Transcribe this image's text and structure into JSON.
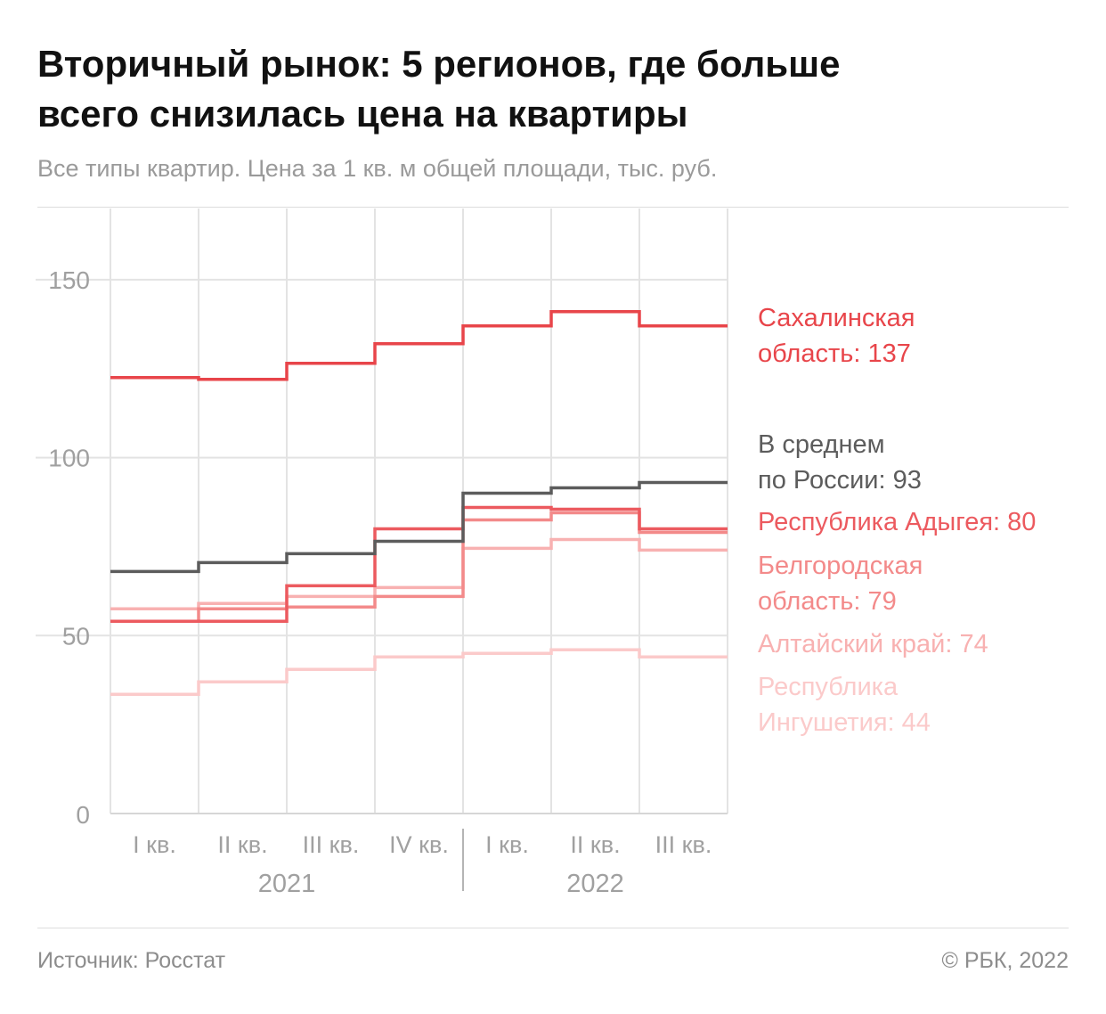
{
  "header": {
    "title_lines": [
      "Вторичный рынок: 5 регионов, где больше",
      "всего снизилась цена на квартиры"
    ],
    "subtitle": "Все типы квартир. Цена за 1 кв. м общей площади, тыс. руб."
  },
  "footer": {
    "source": "Источник: Росстат",
    "copyright": "© РБК, 2022"
  },
  "chart_data": {
    "type": "line",
    "step": true,
    "categories": [
      "I кв.",
      "II кв.",
      "III кв.",
      "IV кв.",
      "I кв.",
      "II кв.",
      "III кв."
    ],
    "years": [
      {
        "label": "2021",
        "quarters": 4
      },
      {
        "label": "2022",
        "quarters": 3
      }
    ],
    "ylim": [
      0,
      170
    ],
    "yticks": [
      0,
      50,
      100,
      150
    ],
    "grid": true,
    "series": [
      {
        "name": "Сахалинская область",
        "label_lines": [
          "Сахалинская",
          "область: 137"
        ],
        "color": "#e8454a",
        "values": [
          122.5,
          122,
          126.5,
          132,
          137,
          141,
          137
        ]
      },
      {
        "name": "В среднем по России",
        "label_lines": [
          "В среднем",
          "по России: 93"
        ],
        "color": "#5c5c5c",
        "values": [
          68,
          70.5,
          73,
          76.5,
          90,
          91.5,
          93
        ]
      },
      {
        "name": "Республика Адыгея",
        "label_lines": [
          "Республика Адыгея: 80"
        ],
        "color": "#ec5a5f",
        "values": [
          54,
          54,
          64,
          80,
          86,
          85.5,
          80
        ]
      },
      {
        "name": "Белгородская область",
        "label_lines": [
          "Белгородская",
          "область: 79"
        ],
        "color": "#f38a8a",
        "values": [
          54,
          57.5,
          58,
          61,
          82.5,
          84.5,
          79
        ]
      },
      {
        "name": "Алтайский край",
        "label_lines": [
          "Алтайский край: 74"
        ],
        "color": "#f8b1b1",
        "values": [
          57.5,
          59,
          61,
          63.5,
          74.5,
          77,
          74
        ]
      },
      {
        "name": "Республика Ингушетия",
        "label_lines": [
          "Республика",
          "Ингушетия: 44"
        ],
        "color": "#fbcaca",
        "values": [
          33.5,
          37,
          40.5,
          44,
          45,
          46,
          44
        ]
      }
    ]
  }
}
